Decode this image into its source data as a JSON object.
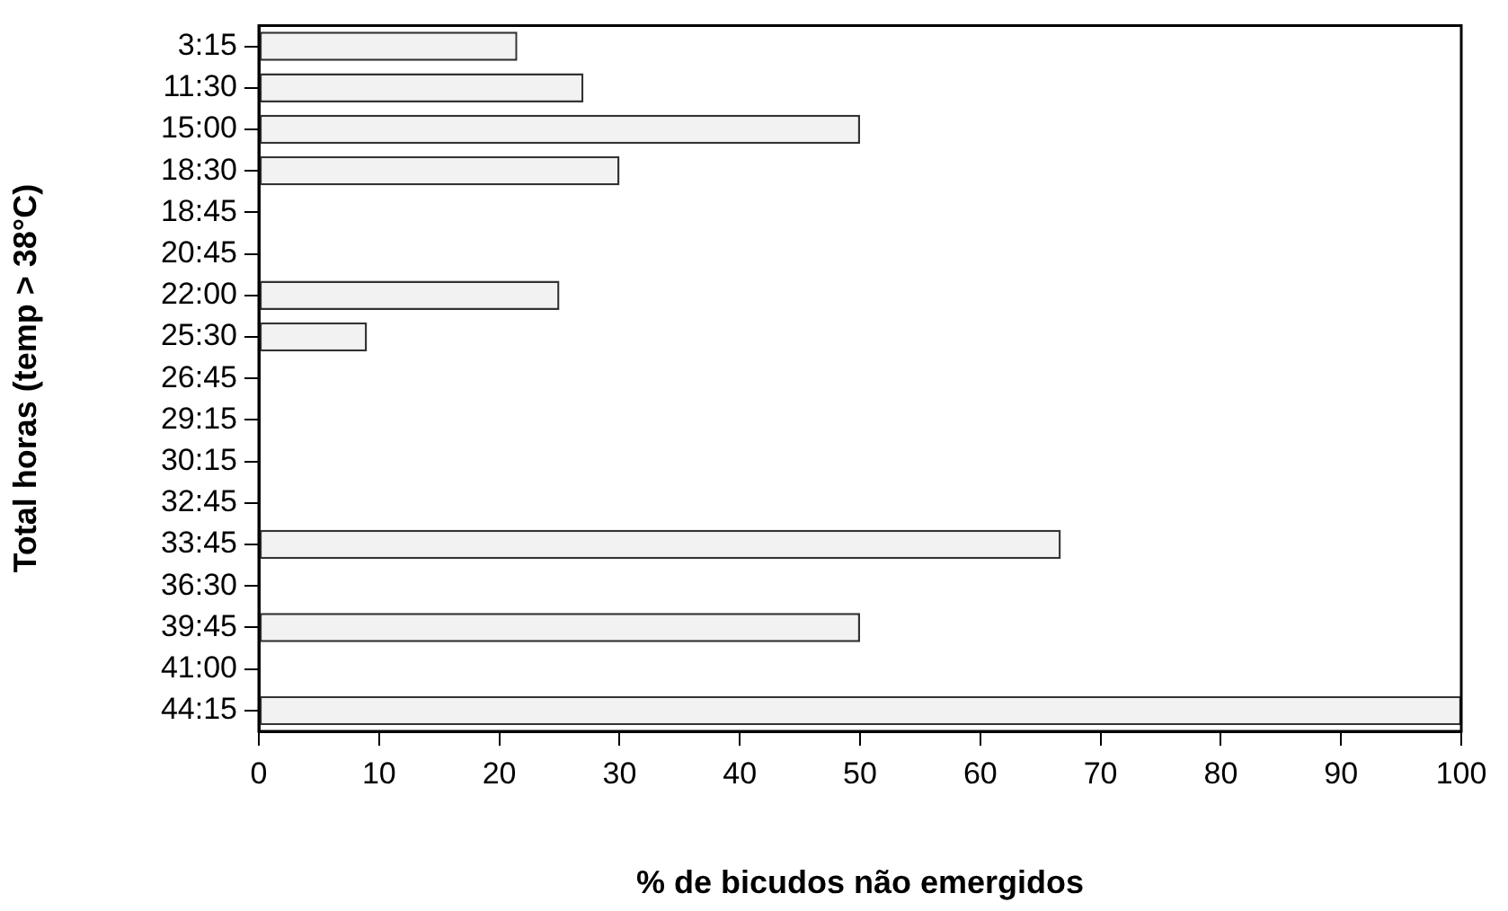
{
  "chart_data": {
    "type": "bar",
    "orientation": "horizontal",
    "xlabel": "% de bicudos não emergidos",
    "ylabel": "Total horas (temp > 38°C)",
    "categories": [
      "3:15",
      "11:30",
      "15:00",
      "18:30",
      "18:45",
      "20:45",
      "22:00",
      "25:30",
      "26:45",
      "29:15",
      "30:15",
      "32:45",
      "33:45",
      "36:30",
      "39:45",
      "41:00",
      "44:15"
    ],
    "values": [
      21.5,
      27,
      50,
      30,
      0,
      0,
      25,
      9,
      0,
      0,
      0,
      0,
      66.7,
      0,
      50,
      0,
      100
    ],
    "color": "#f2f2f2",
    "xlim": [
      0,
      100
    ],
    "xticks": [
      0,
      10,
      20,
      30,
      40,
      50,
      60,
      70,
      80,
      90,
      100
    ],
    "grid": false,
    "legend": false
  }
}
